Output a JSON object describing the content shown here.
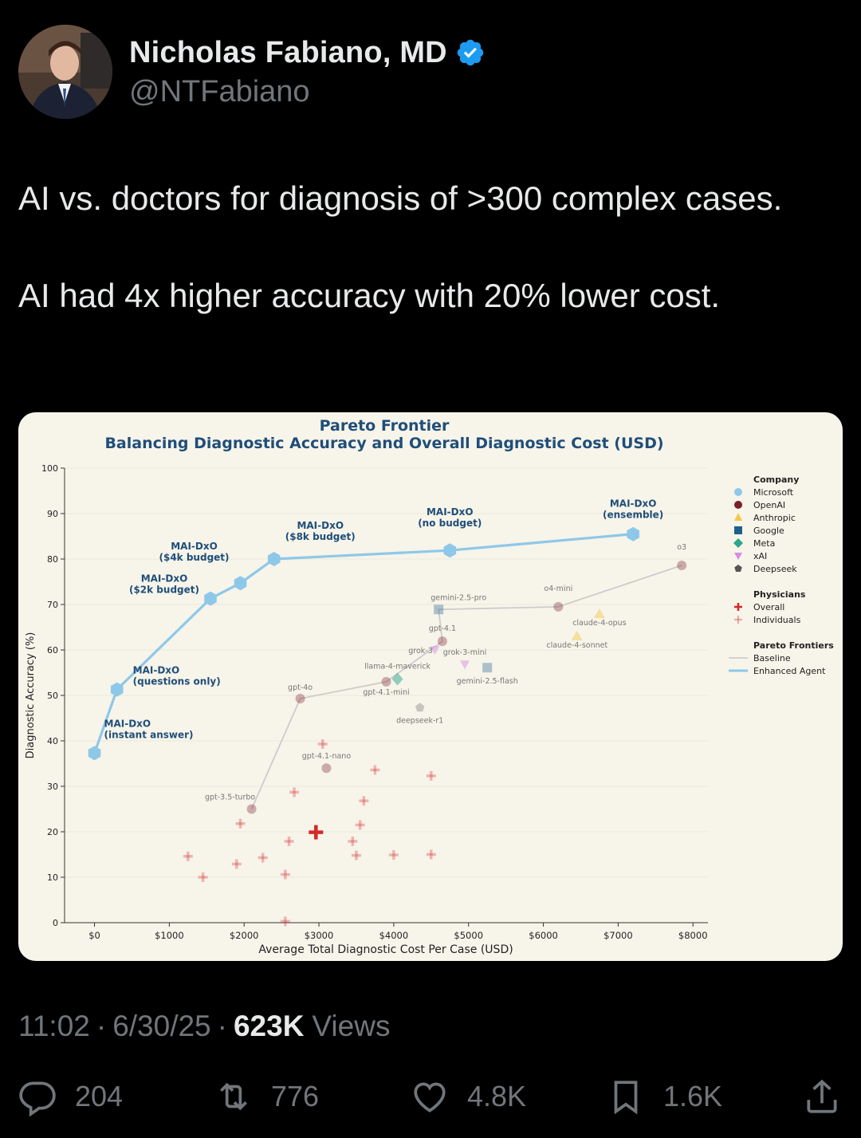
{
  "author": {
    "name": "Nicholas Fabiano, MD",
    "handle": "@NTFabiano"
  },
  "tweet": {
    "line1": "AI vs. doctors for diagnosis of >300 complex cases.",
    "line2": "AI had 4x higher accuracy with 20% lower cost."
  },
  "meta": {
    "time": "11:02",
    "date": "6/30/25",
    "views_count": "623K",
    "views_label": "Views"
  },
  "actions": {
    "replies": "204",
    "reposts": "776",
    "likes": "4.8K",
    "bookmarks": "1.6K"
  },
  "colors": {
    "microsoft": "#8ec8e8",
    "openai": "#7b1f2b",
    "anthropic": "#f2c94c",
    "google": "#1f5f8b",
    "meta": "#2aa68b",
    "xai": "#d98be6",
    "deepseek": "#555555",
    "physician": "#d62828",
    "baseline": "#cccccc",
    "enhanced": "#8ec8e8",
    "title": "#1f4e79"
  },
  "chart_data": {
    "type": "scatter",
    "title": "Pareto Frontier",
    "subtitle": "Balancing Diagnostic Accuracy and Overall Diagnostic Cost (USD)",
    "xlabel": "Average Total Diagnostic Cost Per Case (USD)",
    "ylabel": "Diagnostic Accuracy (%)",
    "xlim": [
      -400,
      8200
    ],
    "ylim": [
      0,
      100
    ],
    "x_ticks": [
      0,
      1000,
      2000,
      3000,
      4000,
      5000,
      6000,
      7000,
      8000
    ],
    "x_tick_labels": [
      "$0",
      "$1000",
      "$2000",
      "$3000",
      "$4000",
      "$5000",
      "$6000",
      "$7000",
      "$8000"
    ],
    "y_ticks": [
      0,
      10,
      20,
      30,
      40,
      50,
      60,
      70,
      80,
      90,
      100
    ],
    "y_tick_labels": [
      "0",
      "10",
      "20",
      "30",
      "40",
      "50",
      "60",
      "70",
      "80",
      "90",
      "100"
    ],
    "legend": {
      "placement": "right",
      "company_title": "Company",
      "companies": [
        {
          "label": "Microsoft",
          "marker": "circle",
          "color_key": "microsoft"
        },
        {
          "label": "OpenAI",
          "marker": "circle",
          "color_key": "openai"
        },
        {
          "label": "Anthropic",
          "marker": "triangle",
          "color_key": "anthropic"
        },
        {
          "label": "Google",
          "marker": "square",
          "color_key": "google"
        },
        {
          "label": "Meta",
          "marker": "diamond",
          "color_key": "meta"
        },
        {
          "label": "xAI",
          "marker": "triangle-down",
          "color_key": "xai"
        },
        {
          "label": "Deepseek",
          "marker": "pentagon",
          "color_key": "deepseek"
        }
      ],
      "physicians_title": "Physicians",
      "physicians": [
        {
          "label": "Overall",
          "marker": "plus-bold",
          "color_key": "physician"
        },
        {
          "label": "Individuals",
          "marker": "plus-light",
          "color_key": "physician"
        }
      ],
      "frontiers_title": "Pareto Frontiers",
      "frontiers": [
        {
          "label": "Baseline",
          "color_key": "baseline"
        },
        {
          "label": "Enhanced Agent",
          "color_key": "enhanced"
        }
      ]
    },
    "enhanced_agent": [
      {
        "x": 0,
        "y": 37.3,
        "label1": "MAI-DxO",
        "label2": "(instant answer)"
      },
      {
        "x": 300,
        "y": 51.3,
        "label1": "MAI-DxO",
        "label2": "(questions only)"
      },
      {
        "x": 1550,
        "y": 71.3,
        "label1": "MAI-DxO",
        "label2": "($2k budget)"
      },
      {
        "x": 1950,
        "y": 74.7,
        "label1": "MAI-DxO",
        "label2": "($4k budget)"
      },
      {
        "x": 2400,
        "y": 80.0,
        "label1": "MAI-DxO",
        "label2": "($8k budget)"
      },
      {
        "x": 4750,
        "y": 81.9,
        "label1": "MAI-DxO",
        "label2": "(no budget)"
      },
      {
        "x": 7200,
        "y": 85.5,
        "label1": "MAI-DxO",
        "label2": "(ensemble)"
      }
    ],
    "baseline_frontier": [
      {
        "x": 2100,
        "y": 25.0
      },
      {
        "x": 2750,
        "y": 49.3
      },
      {
        "x": 3900,
        "y": 53.0
      },
      {
        "x": 4650,
        "y": 61.9
      },
      {
        "x": 4600,
        "y": 68.9
      },
      {
        "x": 6200,
        "y": 69.5
      },
      {
        "x": 7850,
        "y": 78.6
      }
    ],
    "models": [
      {
        "label": "gpt-3.5-turbo",
        "company": "openai",
        "x": 2100,
        "y": 25.0
      },
      {
        "label": "gpt-4.1-nano",
        "company": "openai",
        "x": 3100,
        "y": 34.0
      },
      {
        "label": "gpt-4o",
        "company": "openai",
        "x": 2750,
        "y": 49.3
      },
      {
        "label": "gpt-4.1-mini",
        "company": "openai",
        "x": 3900,
        "y": 53.0
      },
      {
        "label": "gpt-4.1",
        "company": "openai",
        "x": 4650,
        "y": 61.9
      },
      {
        "label": "o4-mini",
        "company": "openai",
        "x": 6200,
        "y": 69.5
      },
      {
        "label": "o3",
        "company": "openai",
        "x": 7850,
        "y": 78.6
      },
      {
        "label": "gemini-2.5-pro",
        "company": "google",
        "x": 4600,
        "y": 68.9
      },
      {
        "label": "gemini-2.5-flash",
        "company": "google",
        "x": 5250,
        "y": 56.1
      },
      {
        "label": "claude-4-opus",
        "company": "anthropic",
        "x": 6750,
        "y": 67.9
      },
      {
        "label": "claude-4-sonnet",
        "company": "anthropic",
        "x": 6450,
        "y": 63.0
      },
      {
        "label": "grok-3",
        "company": "xai",
        "x": 4550,
        "y": 60.0
      },
      {
        "label": "grok-3-mini",
        "company": "xai",
        "x": 4950,
        "y": 56.8
      },
      {
        "label": "llama-4-maverick",
        "company": "meta",
        "x": 4050,
        "y": 53.6
      },
      {
        "label": "deepseek-r1",
        "company": "deepseek",
        "x": 4350,
        "y": 47.3
      }
    ],
    "physicians_overall": {
      "x": 2960,
      "y": 19.9
    },
    "physicians_individuals": [
      {
        "x": 1250,
        "y": 14.6
      },
      {
        "x": 1450,
        "y": 10.0
      },
      {
        "x": 1900,
        "y": 12.9
      },
      {
        "x": 1950,
        "y": 21.8
      },
      {
        "x": 2250,
        "y": 14.3
      },
      {
        "x": 2550,
        "y": 10.6
      },
      {
        "x": 2600,
        "y": 17.9
      },
      {
        "x": 2670,
        "y": 28.7
      },
      {
        "x": 2550,
        "y": 0.3
      },
      {
        "x": 3050,
        "y": 39.3
      },
      {
        "x": 3450,
        "y": 17.9
      },
      {
        "x": 3500,
        "y": 14.8
      },
      {
        "x": 3550,
        "y": 21.5
      },
      {
        "x": 3600,
        "y": 26.8
      },
      {
        "x": 3750,
        "y": 33.6
      },
      {
        "x": 4000,
        "y": 14.9
      },
      {
        "x": 4500,
        "y": 15.0
      },
      {
        "x": 4500,
        "y": 32.3
      }
    ]
  }
}
